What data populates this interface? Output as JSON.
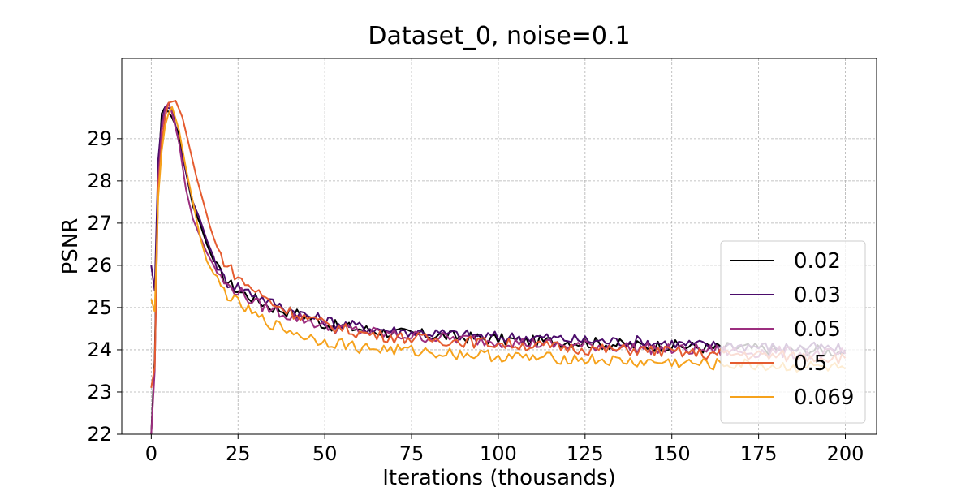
{
  "chart_data": {
    "type": "line",
    "title": "Dataset_0, noise=0.1",
    "xlabel": "Iterations (thousands)",
    "ylabel": "PSNR",
    "xlim": [
      -8.5,
      209
    ],
    "ylim": [
      22,
      30.9
    ],
    "xticks": [
      0,
      25,
      50,
      75,
      100,
      125,
      150,
      175,
      200
    ],
    "yticks": [
      22,
      23,
      24,
      25,
      26,
      27,
      28,
      29
    ],
    "grid": true,
    "legend_position": "lower-right",
    "series": [
      {
        "name": "0.02",
        "color": "#000000",
        "points": [
          [
            0,
            22.0
          ],
          [
            1,
            23.8
          ],
          [
            2,
            28.2
          ],
          [
            3,
            29.6
          ],
          [
            4,
            29.75
          ],
          [
            6,
            29.5
          ],
          [
            8,
            29.1
          ],
          [
            10,
            28.2
          ],
          [
            12,
            27.4
          ],
          [
            14,
            27.0
          ],
          [
            16,
            26.5
          ],
          [
            18,
            26.1
          ],
          [
            20,
            25.8
          ],
          [
            22,
            25.6
          ],
          [
            25,
            25.4
          ],
          [
            30,
            25.2
          ],
          [
            35,
            25.0
          ],
          [
            40,
            24.9
          ],
          [
            45,
            24.8
          ],
          [
            50,
            24.6
          ],
          [
            60,
            24.5
          ],
          [
            70,
            24.4
          ],
          [
            80,
            24.35
          ],
          [
            90,
            24.3
          ],
          [
            100,
            24.25
          ],
          [
            110,
            24.2
          ],
          [
            120,
            24.2
          ],
          [
            130,
            24.15
          ],
          [
            140,
            24.1
          ],
          [
            150,
            24.1
          ],
          [
            160,
            24.05
          ],
          [
            170,
            24.05
          ],
          [
            180,
            24.0
          ],
          [
            190,
            24.0
          ],
          [
            200,
            23.95
          ]
        ]
      },
      {
        "name": "0.03",
        "color": "#4b0c6b",
        "points": [
          [
            0,
            26.0
          ],
          [
            1,
            25.4
          ],
          [
            2,
            28.5
          ],
          [
            3,
            29.4
          ],
          [
            4,
            29.75
          ],
          [
            6,
            29.7
          ],
          [
            7,
            29.3
          ],
          [
            8,
            28.9
          ],
          [
            10,
            28.2
          ],
          [
            12,
            27.5
          ],
          [
            14,
            27.1
          ],
          [
            16,
            26.6
          ],
          [
            18,
            26.2
          ],
          [
            20,
            25.8
          ],
          [
            22,
            25.6
          ],
          [
            25,
            25.5
          ],
          [
            30,
            25.3
          ],
          [
            35,
            25.1
          ],
          [
            40,
            24.95
          ],
          [
            45,
            24.8
          ],
          [
            50,
            24.7
          ],
          [
            55,
            24.6
          ],
          [
            60,
            24.55
          ],
          [
            70,
            24.45
          ],
          [
            80,
            24.4
          ],
          [
            90,
            24.35
          ],
          [
            100,
            24.3
          ],
          [
            110,
            24.3
          ],
          [
            120,
            24.25
          ],
          [
            130,
            24.2
          ],
          [
            140,
            24.2
          ],
          [
            150,
            24.15
          ],
          [
            160,
            24.1
          ],
          [
            170,
            24.1
          ],
          [
            180,
            24.05
          ],
          [
            190,
            24.05
          ],
          [
            200,
            24.0
          ]
        ]
      },
      {
        "name": "0.05",
        "color": "#9c2e7f",
        "points": [
          [
            0,
            22.0
          ],
          [
            1,
            23.5
          ],
          [
            2,
            28.0
          ],
          [
            3,
            29.2
          ],
          [
            4,
            29.7
          ],
          [
            5,
            29.85
          ],
          [
            6,
            29.6
          ],
          [
            8,
            28.9
          ],
          [
            10,
            27.8
          ],
          [
            12,
            27.1
          ],
          [
            14,
            26.7
          ],
          [
            16,
            26.3
          ],
          [
            18,
            26.0
          ],
          [
            20,
            25.7
          ],
          [
            22,
            25.5
          ],
          [
            25,
            25.4
          ],
          [
            30,
            25.1
          ],
          [
            35,
            24.95
          ],
          [
            40,
            24.8
          ],
          [
            45,
            24.7
          ],
          [
            50,
            24.55
          ],
          [
            60,
            24.45
          ],
          [
            70,
            24.35
          ],
          [
            80,
            24.3
          ],
          [
            90,
            24.25
          ],
          [
            100,
            24.2
          ],
          [
            110,
            24.15
          ],
          [
            120,
            24.1
          ],
          [
            130,
            24.1
          ],
          [
            140,
            24.05
          ],
          [
            150,
            24.0
          ],
          [
            160,
            24.0
          ],
          [
            170,
            23.95
          ],
          [
            180,
            23.95
          ],
          [
            190,
            23.9
          ],
          [
            200,
            23.9
          ]
        ]
      },
      {
        "name": "0.5",
        "color": "#e55c30",
        "points": [
          [
            0,
            23.1
          ],
          [
            1,
            23.6
          ],
          [
            2,
            27.8
          ],
          [
            3,
            28.9
          ],
          [
            4,
            29.5
          ],
          [
            5,
            29.85
          ],
          [
            7,
            29.9
          ],
          [
            9,
            29.5
          ],
          [
            11,
            28.8
          ],
          [
            13,
            28.1
          ],
          [
            15,
            27.5
          ],
          [
            17,
            26.9
          ],
          [
            19,
            26.4
          ],
          [
            21,
            26.1
          ],
          [
            23,
            25.9
          ],
          [
            25,
            25.7
          ],
          [
            30,
            25.4
          ],
          [
            35,
            25.1
          ],
          [
            40,
            24.9
          ],
          [
            45,
            24.75
          ],
          [
            50,
            24.6
          ],
          [
            55,
            24.5
          ],
          [
            60,
            24.4
          ],
          [
            70,
            24.3
          ],
          [
            80,
            24.25
          ],
          [
            90,
            24.2
          ],
          [
            100,
            24.15
          ],
          [
            110,
            24.1
          ],
          [
            120,
            24.05
          ],
          [
            130,
            24.0
          ],
          [
            140,
            24.0
          ],
          [
            150,
            23.95
          ],
          [
            160,
            23.9
          ],
          [
            170,
            23.9
          ],
          [
            180,
            23.85
          ],
          [
            190,
            23.85
          ],
          [
            200,
            23.8
          ]
        ]
      },
      {
        "name": "0.069",
        "color": "#f6a21c",
        "points": [
          [
            0,
            25.2
          ],
          [
            1,
            24.9
          ],
          [
            2,
            27.6
          ],
          [
            3,
            28.7
          ],
          [
            4,
            29.3
          ],
          [
            5,
            29.6
          ],
          [
            6,
            29.75
          ],
          [
            8,
            29.2
          ],
          [
            10,
            28.3
          ],
          [
            12,
            27.5
          ],
          [
            14,
            26.7
          ],
          [
            16,
            26.1
          ],
          [
            18,
            25.8
          ],
          [
            20,
            25.5
          ],
          [
            22,
            25.3
          ],
          [
            25,
            25.1
          ],
          [
            30,
            24.8
          ],
          [
            35,
            24.6
          ],
          [
            40,
            24.45
          ],
          [
            45,
            24.3
          ],
          [
            50,
            24.2
          ],
          [
            55,
            24.15
          ],
          [
            60,
            24.05
          ],
          [
            70,
            24.0
          ],
          [
            80,
            23.95
          ],
          [
            90,
            23.9
          ],
          [
            100,
            23.85
          ],
          [
            110,
            23.8
          ],
          [
            120,
            23.8
          ],
          [
            130,
            23.75
          ],
          [
            140,
            23.7
          ],
          [
            150,
            23.7
          ],
          [
            160,
            23.65
          ],
          [
            170,
            23.65
          ],
          [
            180,
            23.6
          ],
          [
            190,
            23.6
          ],
          [
            200,
            23.55
          ]
        ]
      }
    ]
  }
}
